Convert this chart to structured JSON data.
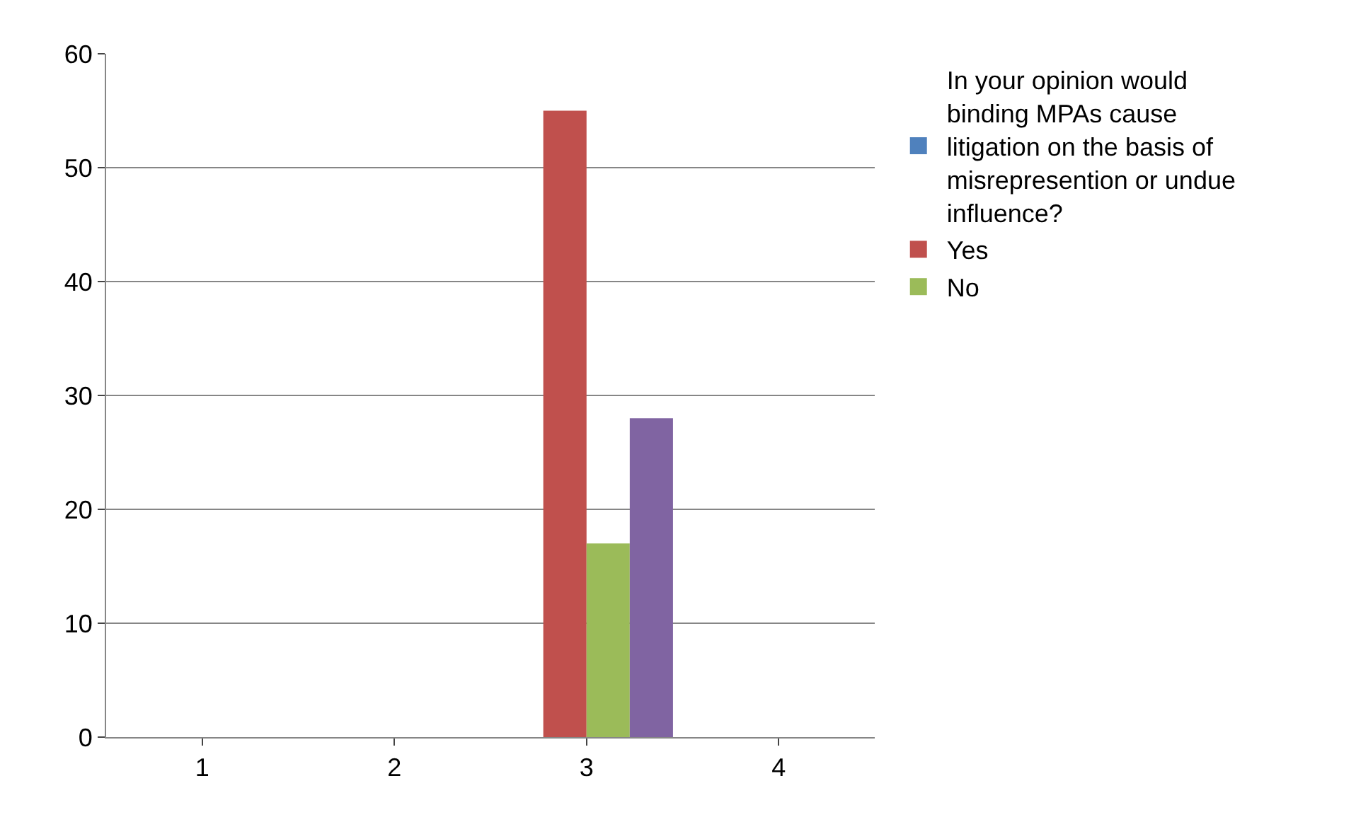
{
  "chart_data": {
    "type": "bar",
    "categories": [
      "1",
      "2",
      "3",
      "4"
    ],
    "series": [
      {
        "name": "In your opinion would binding MPAs cause litigation on the basis of misrepresention or undue influence?",
        "color": "#4f81bd",
        "values": [
          null,
          null,
          null,
          null
        ]
      },
      {
        "name": "Yes",
        "color": "#c0504d",
        "values": [
          null,
          null,
          55,
          null
        ]
      },
      {
        "name": "No",
        "color": "#9bbb59",
        "values": [
          null,
          null,
          17,
          null
        ]
      },
      {
        "color": "#8064a2",
        "values": [
          null,
          null,
          28,
          null
        ]
      }
    ],
    "ylim": [
      0,
      60
    ],
    "yticks": [
      0,
      10,
      20,
      30,
      40,
      50,
      60
    ],
    "grid": "y",
    "legend": "right"
  }
}
